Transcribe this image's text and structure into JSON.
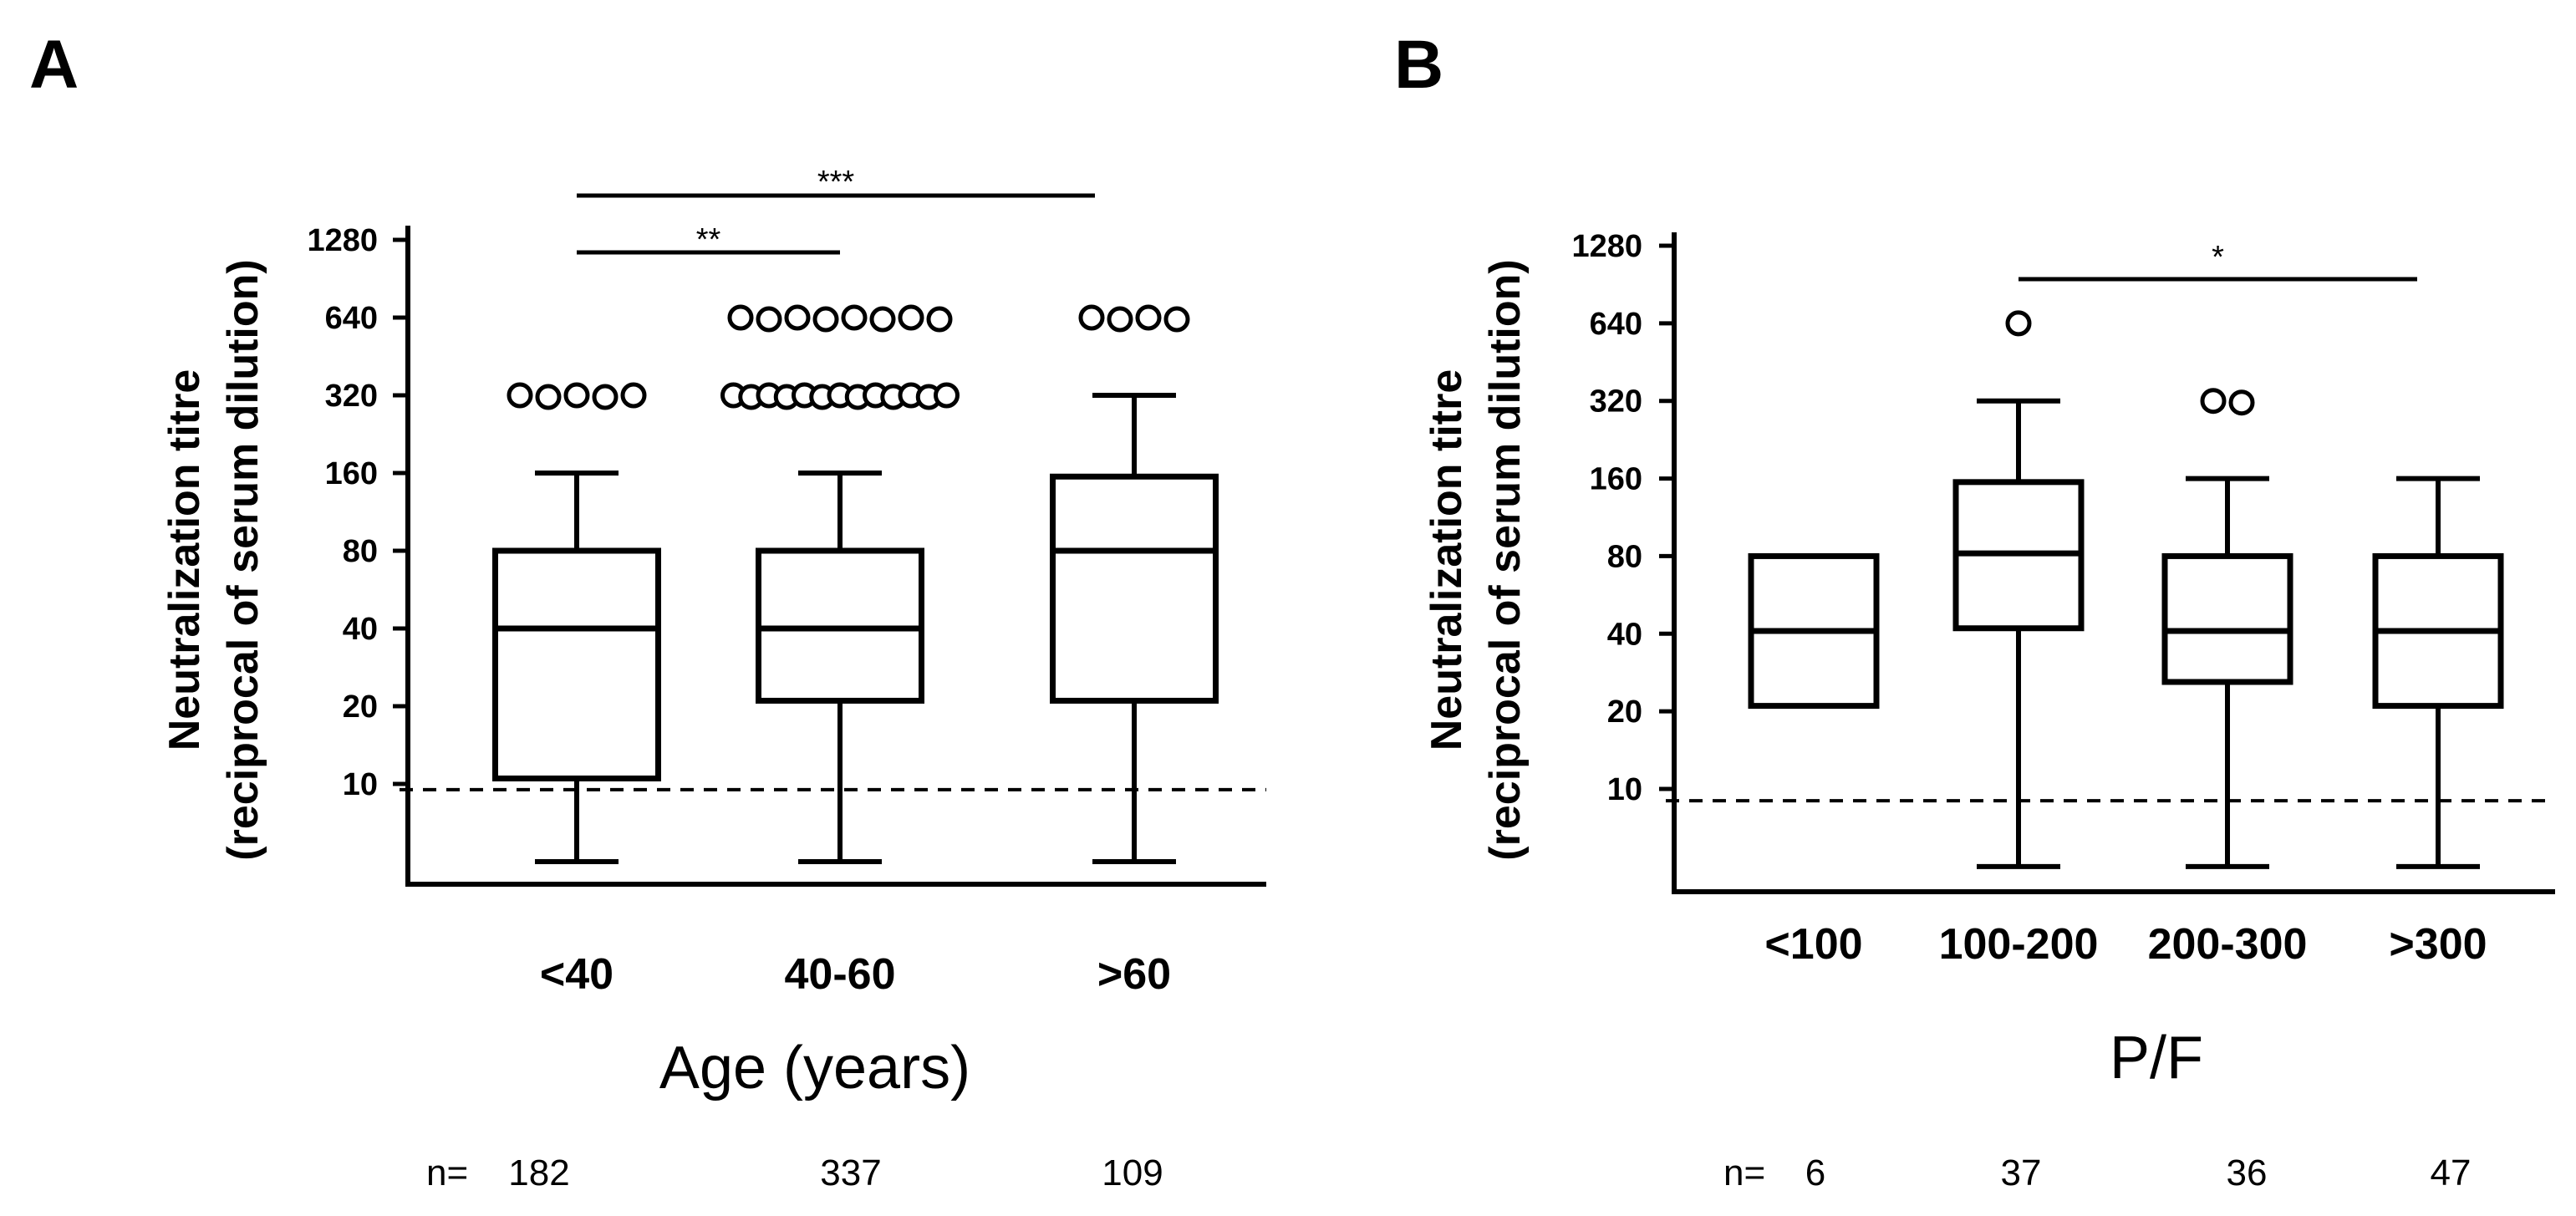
{
  "y_tick_labels": [
    "1280",
    "640",
    "320",
    "160",
    "80",
    "40",
    "20",
    "10"
  ],
  "chart_data": [
    {
      "type": "box",
      "panel": "A",
      "ylabel_line1": "Neutralization titre",
      "ylabel_line2": "(reciprocal of serum dilution)",
      "xlabel": "Age (years)",
      "yscale": "log2",
      "yticks": [
        10,
        20,
        40,
        80,
        160,
        320,
        640,
        1280
      ],
      "threshold": 9.5,
      "categories": [
        "<40",
        "40-60",
        ">60"
      ],
      "n_prefix": "n=",
      "n_values": [
        "182",
        "337",
        "109"
      ],
      "boxes": [
        {
          "whisker_low": 5,
          "q1": 10.5,
          "median": 40,
          "q3": 80,
          "whisker_high": 160,
          "outliers": [
            320,
            320,
            320,
            320,
            320
          ]
        },
        {
          "whisker_low": 5,
          "q1": 21,
          "median": 40,
          "q3": 80,
          "whisker_high": 160,
          "outliers": [
            320,
            320,
            320,
            320,
            320,
            320,
            320,
            320,
            320,
            320,
            320,
            320,
            320,
            640,
            640,
            640,
            640,
            640,
            640,
            640,
            640
          ]
        },
        {
          "whisker_low": 5,
          "q1": 21,
          "median": 80,
          "q3": 155,
          "whisker_high": 320,
          "outliers": [
            640,
            640,
            640,
            640
          ]
        }
      ],
      "significance": [
        {
          "from": 0,
          "to": 1,
          "label": "**"
        },
        {
          "from": 0,
          "to": 2,
          "label": "***"
        }
      ]
    },
    {
      "type": "box",
      "panel": "B",
      "ylabel_line1": "Neutralization titre",
      "ylabel_line2": "(reciprocal of serum dilution)",
      "xlabel": "P/F",
      "yscale": "log2",
      "yticks": [
        10,
        20,
        40,
        80,
        160,
        320,
        640,
        1280
      ],
      "threshold": 9,
      "categories": [
        "<100",
        "100-200",
        "200-300",
        ">300"
      ],
      "n_prefix": "n=",
      "n_values": [
        "6",
        "37",
        "36",
        "47"
      ],
      "boxes": [
        {
          "whisker_low": null,
          "q1": 21,
          "median": 41,
          "q3": 80,
          "whisker_high": null,
          "outliers": []
        },
        {
          "whisker_low": 5,
          "q1": 42,
          "median": 82,
          "q3": 155,
          "whisker_high": 320,
          "outliers": [
            640
          ]
        },
        {
          "whisker_low": 5,
          "q1": 26,
          "median": 41,
          "q3": 80,
          "whisker_high": 160,
          "outliers": [
            320,
            320
          ]
        },
        {
          "whisker_low": 5,
          "q1": 21,
          "median": 41,
          "q3": 80,
          "whisker_high": 160,
          "outliers": []
        }
      ],
      "significance": [
        {
          "from": 1,
          "to": 3,
          "label": "*"
        }
      ]
    }
  ]
}
